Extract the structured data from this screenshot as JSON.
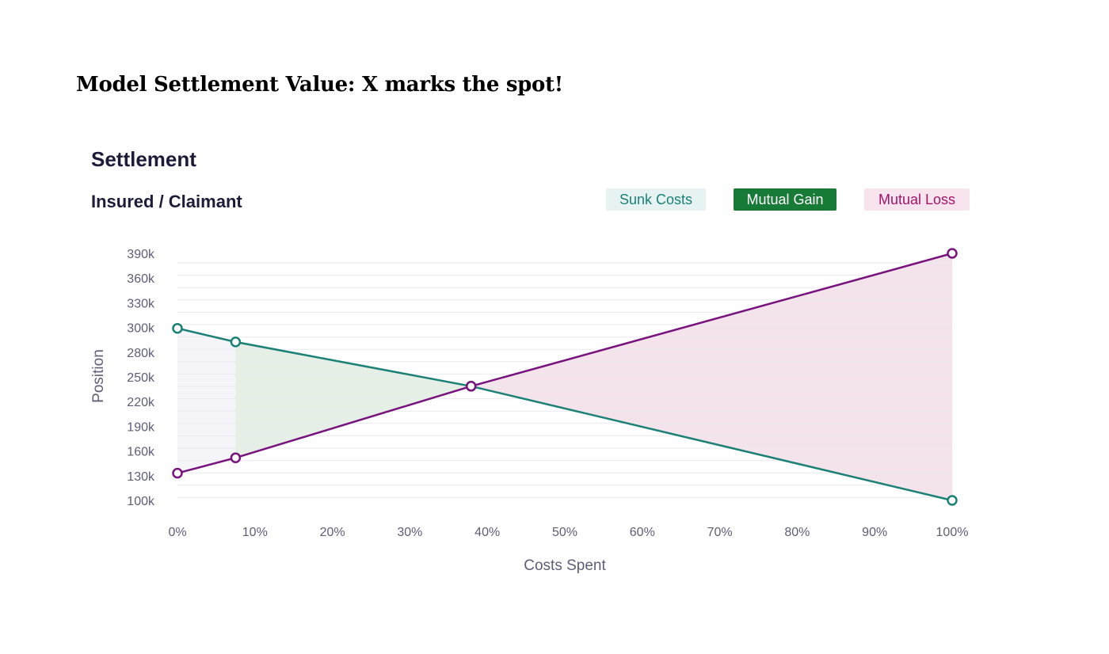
{
  "slide_title": "Model Settlement Value:  X marks the spot!",
  "chart_data": {
    "type": "line",
    "title": "Settlement",
    "subtitle": "Insured / Claimant",
    "xlabel": "Costs Spent",
    "ylabel": "Position",
    "x_ticks": [
      "0%",
      "10%",
      "20%",
      "30%",
      "40%",
      "50%",
      "60%",
      "70%",
      "80%",
      "90%",
      "100%"
    ],
    "y_ticks": [
      "390k",
      "360k",
      "330k",
      "300k",
      "280k",
      "250k",
      "220k",
      "190k",
      "160k",
      "130k",
      "100k"
    ],
    "xlim": [
      0,
      100
    ],
    "ylim": [
      100000,
      390000
    ],
    "grid": true,
    "legend": [
      {
        "label": "Sunk Costs",
        "color": "#1a8076",
        "bg": "#e7f3f2"
      },
      {
        "label": "Mutual Gain",
        "color": "#ffffff",
        "bg": "#177a36"
      },
      {
        "label": "Mutual Loss",
        "color": "#a31368",
        "bg": "#f7e4ee"
      }
    ],
    "series": [
      {
        "name": "Insured",
        "color": "#1b8075",
        "points": [
          [
            0,
            302000
          ],
          [
            7.5,
            286000
          ],
          [
            37.9,
            234000
          ],
          [
            100,
            100000
          ]
        ]
      },
      {
        "name": "Claimant",
        "color": "#78137d",
        "points": [
          [
            0,
            132000
          ],
          [
            7.5,
            150000
          ],
          [
            37.9,
            234000
          ],
          [
            100,
            390000
          ]
        ]
      }
    ],
    "regions": [
      {
        "name": "Sunk Costs",
        "x_from": 0,
        "x_to": 7.5,
        "color": "#f4f4f9"
      },
      {
        "name": "Mutual Gain",
        "x_from": 7.5,
        "x_to": 37.9,
        "color": "#e6efe6"
      },
      {
        "name": "Mutual Loss",
        "x_from": 37.9,
        "x_to": 100,
        "color": "#f5e3ec"
      }
    ]
  }
}
